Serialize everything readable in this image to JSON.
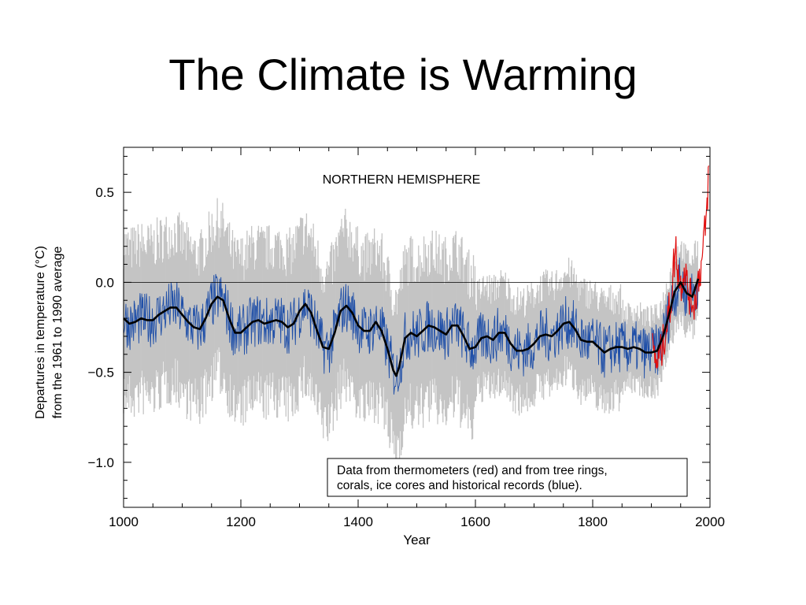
{
  "slide": {
    "title": "The Climate is Warming"
  },
  "chart_data": {
    "type": "line",
    "title": "NORTHERN HEMISPHERE",
    "xlabel": "Year",
    "ylabel_lines": [
      "Departures in temperature (°C)",
      "from the 1961 to 1990 average"
    ],
    "xlim": [
      1000,
      2000
    ],
    "ylim": [
      -1.25,
      0.75
    ],
    "x_ticks": [
      1000,
      1200,
      1400,
      1600,
      1800,
      2000
    ],
    "x_tick_labels": [
      "1000",
      "1200",
      "1400",
      "1600",
      "1800",
      "2000"
    ],
    "y_ticks": [
      0.5,
      0.0,
      -0.5,
      -1.0
    ],
    "y_tick_labels": [
      "0.5",
      "0.0",
      "−0.5",
      "−1.0"
    ],
    "zero_line": 0.0,
    "annotation": {
      "lines": [
        "Data from thermometers (red) and from tree rings,",
        "corals, ice cores and historical records (blue)."
      ]
    },
    "colors": {
      "uncertainty": "#c4c4c4",
      "proxy": "#1f4fa8",
      "thermometer": "#e01010",
      "smoothed": "#000000"
    },
    "series": [
      {
        "key": "smoothed",
        "x": [
          1000,
          1010,
          1020,
          1030,
          1040,
          1050,
          1060,
          1070,
          1080,
          1090,
          1100,
          1110,
          1120,
          1130,
          1140,
          1150,
          1160,
          1170,
          1180,
          1190,
          1200,
          1210,
          1220,
          1230,
          1240,
          1250,
          1260,
          1270,
          1280,
          1290,
          1300,
          1310,
          1320,
          1330,
          1340,
          1350,
          1360,
          1370,
          1380,
          1390,
          1400,
          1410,
          1420,
          1430,
          1440,
          1450,
          1460,
          1465,
          1470,
          1480,
          1490,
          1500,
          1510,
          1520,
          1530,
          1540,
          1550,
          1560,
          1570,
          1580,
          1590,
          1600,
          1610,
          1620,
          1630,
          1640,
          1650,
          1660,
          1670,
          1680,
          1690,
          1700,
          1710,
          1720,
          1730,
          1740,
          1750,
          1760,
          1770,
          1780,
          1790,
          1800,
          1810,
          1820,
          1830,
          1840,
          1850,
          1860,
          1870,
          1880,
          1890,
          1900,
          1910,
          1920,
          1930,
          1940,
          1950,
          1960,
          1970,
          1980
        ],
        "y": [
          -0.2,
          -0.23,
          -0.22,
          -0.2,
          -0.21,
          -0.21,
          -0.18,
          -0.16,
          -0.14,
          -0.14,
          -0.18,
          -0.22,
          -0.25,
          -0.26,
          -0.2,
          -0.12,
          -0.08,
          -0.1,
          -0.2,
          -0.28,
          -0.28,
          -0.25,
          -0.22,
          -0.21,
          -0.23,
          -0.22,
          -0.21,
          -0.22,
          -0.25,
          -0.23,
          -0.16,
          -0.12,
          -0.17,
          -0.27,
          -0.36,
          -0.37,
          -0.28,
          -0.16,
          -0.13,
          -0.17,
          -0.24,
          -0.27,
          -0.27,
          -0.22,
          -0.27,
          -0.37,
          -0.49,
          -0.52,
          -0.47,
          -0.31,
          -0.28,
          -0.3,
          -0.27,
          -0.24,
          -0.25,
          -0.27,
          -0.29,
          -0.24,
          -0.24,
          -0.3,
          -0.37,
          -0.36,
          -0.31,
          -0.3,
          -0.32,
          -0.28,
          -0.28,
          -0.34,
          -0.38,
          -0.38,
          -0.37,
          -0.34,
          -0.3,
          -0.29,
          -0.3,
          -0.27,
          -0.23,
          -0.22,
          -0.26,
          -0.32,
          -0.33,
          -0.33,
          -0.36,
          -0.39,
          -0.37,
          -0.36,
          -0.36,
          -0.37,
          -0.36,
          -0.37,
          -0.39,
          -0.39,
          -0.38,
          -0.3,
          -0.18,
          -0.05,
          0.0,
          -0.06,
          -0.08,
          0.02
        ]
      },
      {
        "key": "thermometer",
        "x": [
          1902,
          1906,
          1910,
          1914,
          1918,
          1922,
          1926,
          1930,
          1934,
          1938,
          1942,
          1946,
          1950,
          1954,
          1958,
          1962,
          1966,
          1970,
          1974,
          1978,
          1982,
          1986,
          1990,
          1994,
          1998
        ],
        "y": [
          -0.38,
          -0.42,
          -0.45,
          -0.4,
          -0.38,
          -0.3,
          -0.25,
          -0.16,
          -0.1,
          0.1,
          0.18,
          0.05,
          -0.02,
          0.05,
          0.08,
          -0.05,
          -0.08,
          -0.1,
          -0.12,
          -0.02,
          0.05,
          0.1,
          0.25,
          0.35,
          0.65
        ]
      }
    ]
  }
}
